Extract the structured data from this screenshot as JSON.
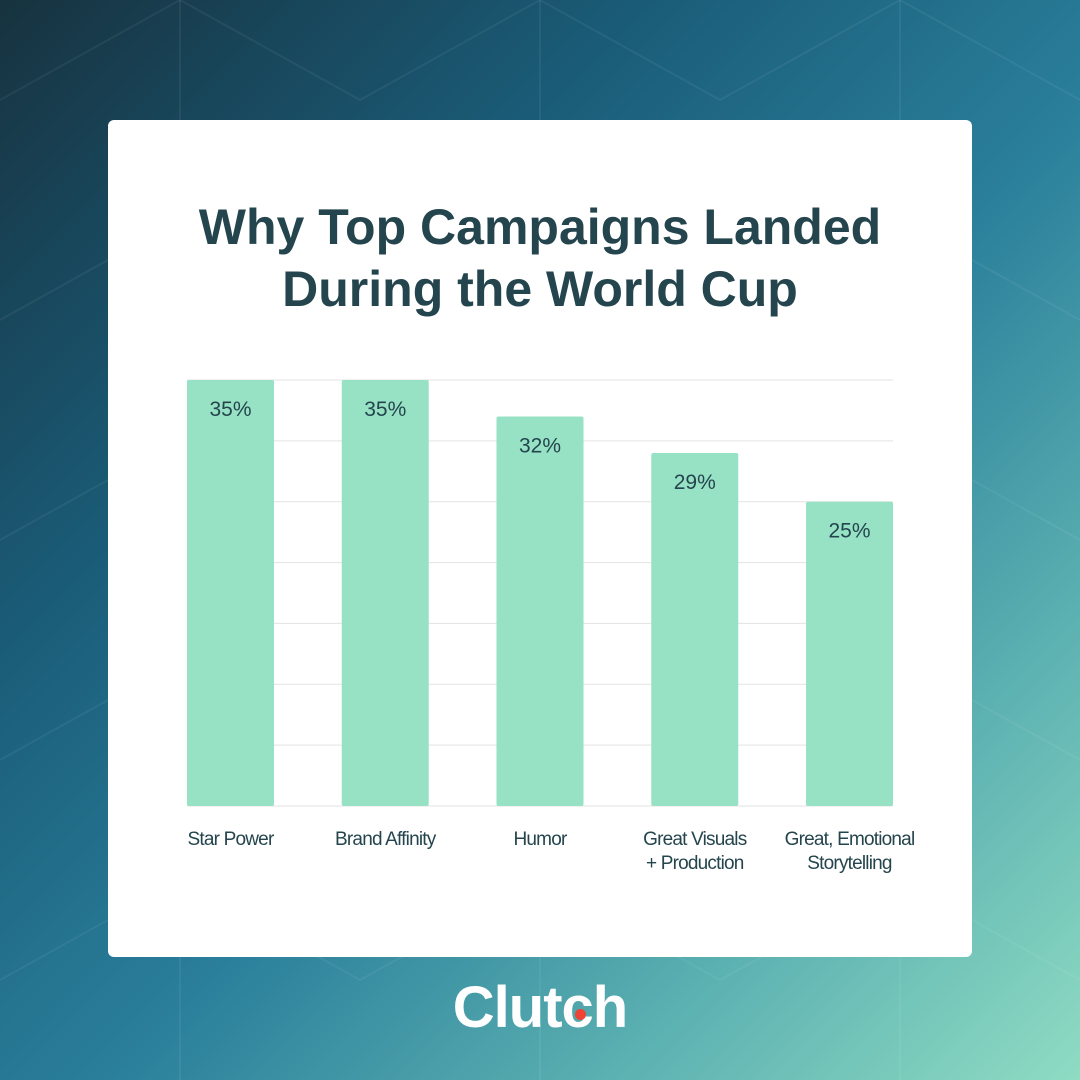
{
  "title_lines": [
    "Why Top Campaigns Landed",
    "During the World Cup"
  ],
  "brand": "Clutch",
  "colors": {
    "bar": "#97e2c5",
    "label_text": "#24454d",
    "category_text": "#24454d",
    "grid": "#e3e3e3",
    "brand_dot": "#ef4335"
  },
  "chart_data": {
    "type": "bar",
    "title": "Why Top Campaigns Landed During the World Cup",
    "categories": [
      [
        "Star Power"
      ],
      [
        "Brand Affinity"
      ],
      [
        "Humor"
      ],
      [
        "Great Visuals",
        "+ Production"
      ],
      [
        "Great, Emotional",
        "Storytelling"
      ]
    ],
    "values": [
      35,
      35,
      32,
      29,
      25
    ],
    "data_labels": [
      "35%",
      "35%",
      "32%",
      "29%",
      "25%"
    ],
    "ylim": [
      0,
      35
    ],
    "grid": true,
    "xlabel": "",
    "ylabel": ""
  }
}
